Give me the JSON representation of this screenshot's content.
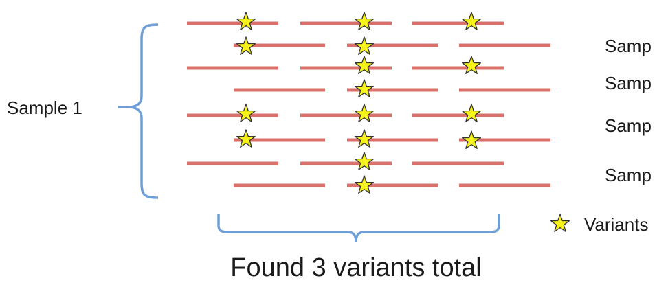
{
  "labels": {
    "sample_group": "Sample 1",
    "right_samples": [
      "Samp",
      "Samp",
      "Samp",
      "Samp"
    ],
    "legend_variants": "Variants",
    "total": "Found 3 variants total"
  },
  "colors": {
    "read": "#d9706c",
    "bracket": "#6f9fd8",
    "star_fill": "#f7f21c",
    "star_stroke": "#333333",
    "text": "#1a1a1a"
  },
  "icons": {
    "variant": "star-icon"
  }
}
